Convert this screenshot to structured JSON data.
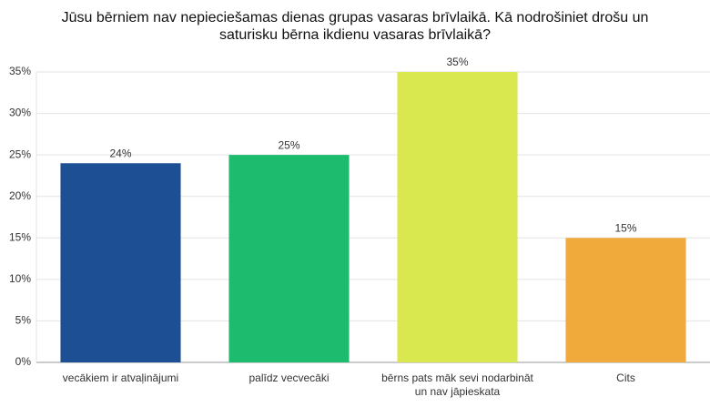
{
  "chart_data": {
    "type": "bar",
    "title": "Jūsu bērniem nav nepieciešamas dienas grupas vasaras brīvlaikā. Kā nodrošiniet drošu un saturisku bērna ikdienu vasaras brīvlaikā?",
    "categories": [
      "vecākiem ir atvaļinājumi",
      "palīdz vecvecāki",
      "bērns pats māk sevi nodarbināt un nav jāpieskata",
      "Cits"
    ],
    "values": [
      24,
      25,
      35,
      15
    ],
    "value_labels": [
      "24%",
      "25%",
      "35%",
      "15%"
    ],
    "colors": [
      "#1c4f94",
      "#1dbb6d",
      "#d9e84f",
      "#f0a93b"
    ],
    "ylim": [
      0,
      35
    ],
    "yticks": [
      {
        "value": 0,
        "label": "0%"
      },
      {
        "value": 5,
        "label": "5%"
      },
      {
        "value": 10,
        "label": "10%"
      },
      {
        "value": 15,
        "label": "15%"
      },
      {
        "value": 20,
        "label": "20%"
      },
      {
        "value": 25,
        "label": "25%"
      },
      {
        "value": 30,
        "label": "30%"
      },
      {
        "value": 35,
        "label": "35%"
      }
    ],
    "grid": true
  }
}
